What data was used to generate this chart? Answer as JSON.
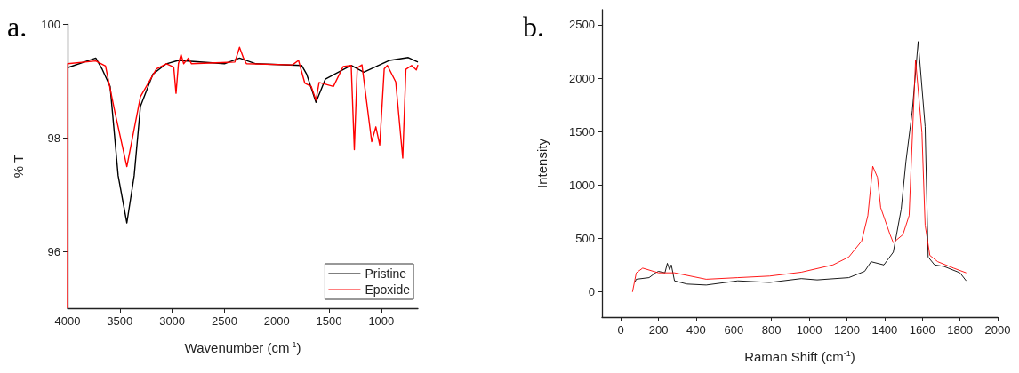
{
  "chart_data": [
    {
      "type": "line",
      "xlabel": "Wavenumber (cm$^{-1}$)",
      "ylabel": "% T",
      "annotations": [
        "a."
      ],
      "xlim": [
        4000,
        650
      ],
      "xticks": [
        4000,
        3500,
        3000,
        2500,
        2000,
        1500,
        1000
      ],
      "ylim": [
        95,
        100
      ],
      "yticks": [
        96,
        98,
        100
      ],
      "grid": false,
      "legend": "bottom right",
      "marker": "none",
      "line_style": "solid",
      "series": [
        {
          "name": "Pristine",
          "color": "#000000",
          "x": [
            4000,
            3730,
            3668,
            3593,
            3516,
            3433,
            3363,
            3303,
            3183,
            3055,
            2940,
            2500,
            2356,
            2200,
            1762,
            1715,
            1625,
            1535,
            1288,
            1168,
            920,
            742,
            650
          ],
          "values": [
            99.23,
            99.4,
            99.2,
            98.9,
            97.33,
            96.5,
            97.33,
            98.55,
            99.12,
            99.3,
            99.36,
            99.3,
            99.4,
            99.3,
            99.27,
            99.12,
            98.62,
            99.03,
            99.27,
            99.15,
            99.36,
            99.41,
            99.33
          ]
        },
        {
          "name": "Epoxide",
          "color": "#ff0000",
          "x": [
            4000,
            3998,
            3730,
            3637,
            3546,
            3433,
            3303,
            3150,
            3055,
            2985,
            2963,
            2940,
            2915,
            2890,
            2845,
            2815,
            2400,
            2356,
            2320,
            2290,
            1850,
            1792,
            1732,
            1670,
            1625,
            1595,
            1458,
            1365,
            1288,
            1258,
            1230,
            1185,
            1092,
            1052,
            1015,
            972,
            942,
            862,
            795,
            765,
            710,
            665,
            650
          ],
          "values": [
            95,
            99.3,
            99.35,
            99.26,
            98.44,
            97.49,
            98.72,
            99.21,
            99.3,
            99.24,
            98.78,
            99.3,
            99.46,
            99.3,
            99.4,
            99.3,
            99.33,
            99.59,
            99.41,
            99.3,
            99.28,
            99.36,
            98.96,
            98.9,
            98.66,
            98.97,
            98.9,
            99.25,
            99.27,
            97.79,
            99.23,
            99.28,
            97.93,
            98.19,
            97.87,
            99.21,
            99.27,
            98.98,
            97.64,
            99.2,
            99.27,
            99.19,
            99.28
          ]
        }
      ]
    },
    {
      "type": "line",
      "xlabel": "Raman Shift (cm$^{-1}$)",
      "ylabel": "Intensity",
      "annotations": [
        "b."
      ],
      "xlim": [
        -100,
        2000
      ],
      "xticks": [
        0,
        200,
        400,
        600,
        800,
        1000,
        1200,
        1400,
        1600,
        1800,
        2000
      ],
      "ylim": [
        -235,
        2640
      ],
      "yticks": [
        0,
        500,
        1000,
        1500,
        2000,
        2500
      ],
      "grid": false,
      "marker": "none",
      "line_style": "solid",
      "series": [
        {
          "color": "#000000",
          "x": [
            74,
            82,
            150,
            184,
            200,
            234,
            247,
            259,
            268,
            285,
            352,
            453,
            621,
            790,
            958,
            1042,
            1210,
            1294,
            1328,
            1396,
            1446,
            1488,
            1513,
            1547,
            1578,
            1615,
            1631,
            1665,
            1716,
            1800,
            1833
          ],
          "values": [
            89,
            119,
            134,
            179,
            193,
            179,
            268,
            208,
            253,
            104,
            74,
            65,
            104,
            89,
            125,
            113,
            134,
            193,
            283,
            253,
            372,
            774,
            1220,
            1697,
            2343,
            1548,
            327,
            253,
            238,
            179,
            104
          ]
        },
        {
          "color": "#ff0000",
          "x": [
            62,
            82,
            116,
            200,
            285,
            453,
            621,
            790,
            958,
            1126,
            1210,
            1278,
            1311,
            1337,
            1362,
            1379,
            1429,
            1446,
            1497,
            1530,
            1564,
            1598,
            1615,
            1640,
            1682,
            1766,
            1833
          ],
          "values": [
            0,
            179,
            223,
            179,
            179,
            119,
            134,
            149,
            185,
            253,
            327,
            476,
            714,
            1176,
            1072,
            789,
            536,
            461,
            536,
            714,
            2173,
            1488,
            625,
            342,
            283,
            223,
            179
          ]
        }
      ]
    }
  ]
}
